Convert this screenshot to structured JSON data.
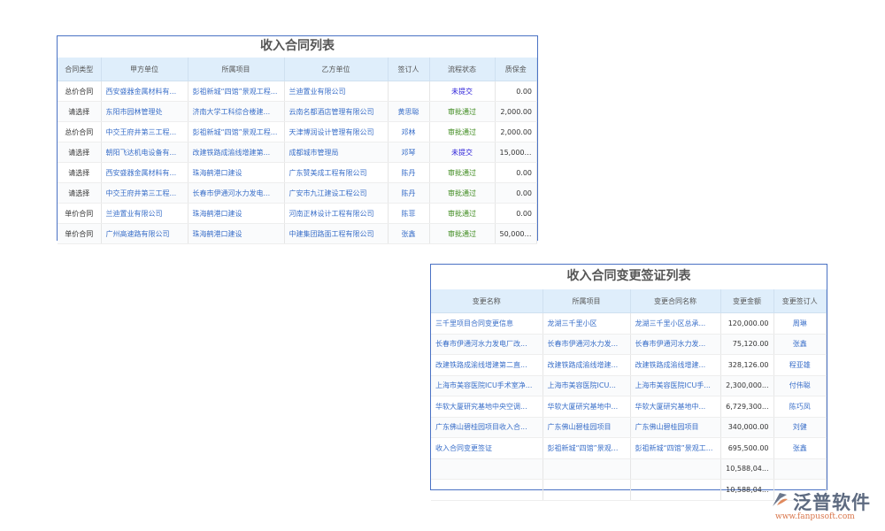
{
  "income_contracts": {
    "title": "收入合同列表",
    "columns": [
      "合同类型",
      "甲方单位",
      "所属项目",
      "乙方单位",
      "签订人",
      "流程状态",
      "质保金"
    ],
    "rows": [
      [
        "总价合同",
        "西安盛器金属材料有...",
        "彭祖新城“四馆”景观工程...",
        "兰迪置业有限公司",
        "",
        "未提交",
        "0.00"
      ],
      [
        "请选择",
        "东阳市园林管理处",
        "济南大学工科综合楼建...",
        "云南名都酒店管理有限公司",
        "黄思聪",
        "审批通过",
        "2,000.00"
      ],
      [
        "总价合同",
        "中交王府井第三工程...",
        "彭祖新城“四馆”景观工程...",
        "天津博润设计管理有限公司",
        "邓林",
        "审批通过",
        "2,000.00"
      ],
      [
        "请选择",
        "朝阳飞达机电设备有...",
        "改建铁路成渝线增建第...",
        "成都城市管理局",
        "邓琴",
        "未提交",
        "15,000.00"
      ],
      [
        "请选择",
        "西安盛器金属材料有...",
        "珠海鹤港口建设",
        "广东赞美成工程有限公司",
        "陈丹",
        "审批通过",
        "0.00"
      ],
      [
        "请选择",
        "中交王府井第三工程...",
        "长春市伊通河水力发电...",
        "广安市九江建设工程公司",
        "陈丹",
        "审批通过",
        "0.00"
      ],
      [
        "单价合同",
        "兰迪置业有限公司",
        "珠海鹤港口建设",
        "河南正林设计工程有限公司",
        "陈菲",
        "审批通过",
        "0.00"
      ],
      [
        "单价合同",
        "广州高速路有限公司",
        "珠海鹤港口建设",
        "中建集团路面工程有限公司",
        "张鑫",
        "审批通过",
        "50,000.00"
      ]
    ]
  },
  "change_visas": {
    "title": "收入合同变更签证列表",
    "columns": [
      "变更名称",
      "所属项目",
      "变更合同名称",
      "变更金额",
      "变更签订人"
    ],
    "rows": [
      [
        "三千里项目合同变更信息",
        "龙湖三千里小区",
        "龙湖三千里小区总承...",
        "120,000.00",
        "周琳"
      ],
      [
        "长春市伊通河水力发电厂改...",
        "长春市伊通河水力发...",
        "长春市伊通河水力发...",
        "75,120.00",
        "张鑫"
      ],
      [
        "改建铁路成渝线增建第二直...",
        "改建铁路成渝线增建...",
        "改建铁路成渝线增建...",
        "328,126.00",
        "程亚雄"
      ],
      [
        "上海市美容医院ICU手术室净...",
        "上海市美容医院ICU...",
        "上海市美容医院ICU手...",
        "2,300,000...",
        "付伟聪"
      ],
      [
        "华软大厦研究基地中央空调...",
        "华软大厦研究基地中...",
        "华软大厦研究基地中...",
        "6,729,300...",
        "陈巧凤"
      ],
      [
        "广东佛山碧桂园项目收入合...",
        "广东佛山碧桂园项目",
        "广东佛山碧桂园项目",
        "340,000.00",
        "刘健"
      ],
      [
        "收入合同变更签证",
        "彭祖新城“四馆”景观...",
        "彭祖新城“四馆”景观工...",
        "695,500.00",
        "张鑫"
      ],
      [
        "",
        "",
        "",
        "10,588,04...",
        ""
      ],
      [
        "",
        "",
        "",
        "10,588,04...",
        ""
      ]
    ]
  },
  "logo": {
    "name": "泛普软件",
    "url": "www.fanpusoft.com"
  },
  "colors": {
    "border": "#4a72c4",
    "header_bg": "#dfeefb",
    "link": "#3a6fc9",
    "status_pending": "#2a1ed8",
    "status_approved": "#3f8b1f"
  }
}
